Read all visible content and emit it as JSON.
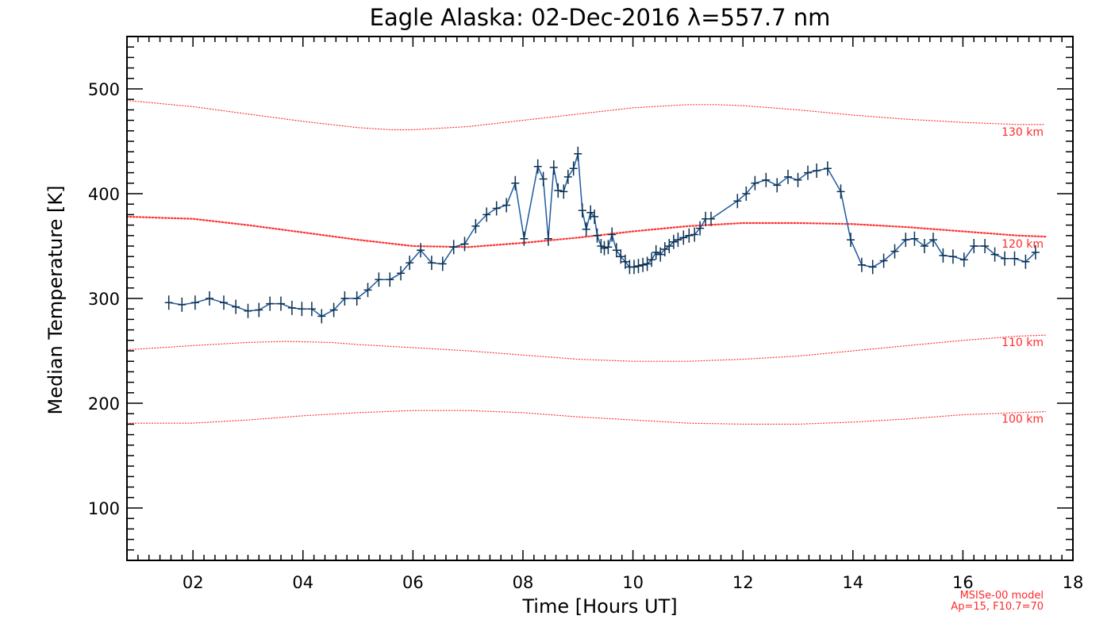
{
  "chart_data": {
    "type": "line",
    "title": "Eagle Alaska: 02-Dec-2016 λ=557.7 nm",
    "xlabel": "Time [Hours UT]",
    "ylabel": "Median Temperature [K]",
    "xlim": [
      0.8,
      18.0
    ],
    "ylim": [
      50,
      550
    ],
    "xticks": [
      2,
      4,
      6,
      8,
      10,
      12,
      14,
      16,
      18
    ],
    "xtick_labels": [
      "02",
      "04",
      "06",
      "08",
      "10",
      "12",
      "14",
      "16",
      "18"
    ],
    "yticks": [
      100,
      200,
      300,
      400,
      500
    ],
    "ytick_labels": [
      "100",
      "200",
      "300",
      "400",
      "500"
    ],
    "grid": false,
    "note_lines": [
      "MSISe-00 model",
      "Ap=15, F10.7=70"
    ],
    "measured": {
      "color": "#0b3050",
      "x": [
        1.56,
        1.8,
        2.04,
        2.3,
        2.56,
        2.78,
        3.0,
        3.2,
        3.4,
        3.6,
        3.8,
        3.98,
        4.16,
        4.34,
        4.56,
        4.76,
        4.98,
        5.18,
        5.38,
        5.58,
        5.78,
        5.94,
        6.14,
        6.34,
        6.54,
        6.74,
        6.94,
        7.14,
        7.34,
        7.52,
        7.7,
        7.86,
        8.02,
        8.27,
        8.37,
        8.46,
        8.56,
        8.64,
        8.74,
        8.82,
        8.92,
        9.0,
        9.08,
        9.15,
        9.23,
        9.3,
        9.35,
        9.42,
        9.48,
        9.55,
        9.62,
        9.7,
        9.78,
        9.86,
        9.94,
        10.02,
        10.1,
        10.18,
        10.26,
        10.34,
        10.42,
        10.5,
        10.58,
        10.66,
        10.74,
        10.82,
        10.92,
        11.02,
        11.12,
        11.22,
        11.32,
        11.42,
        11.9,
        12.06,
        12.22,
        12.42,
        12.62,
        12.82,
        13.0,
        13.18,
        13.34,
        13.54,
        13.78,
        13.96,
        14.16,
        14.36,
        14.56,
        14.76,
        14.96,
        15.12,
        15.3,
        15.46,
        15.64,
        15.82,
        16.02,
        16.2,
        16.4,
        16.58,
        16.76,
        16.94,
        17.14,
        17.32
      ],
      "y": [
        296,
        294,
        296,
        300,
        296,
        292,
        288,
        289,
        295,
        295,
        291,
        290,
        290,
        283,
        289,
        300,
        300,
        308,
        318,
        318,
        324,
        334,
        346,
        334,
        333,
        349,
        352,
        369,
        380,
        386,
        389,
        410,
        357,
        426,
        414,
        357,
        425,
        403,
        402,
        416,
        424,
        438,
        384,
        366,
        382,
        378,
        360,
        350,
        348,
        349,
        361,
        346,
        340,
        335,
        330,
        330,
        331,
        332,
        333,
        337,
        344,
        342,
        347,
        350,
        354,
        356,
        358,
        360,
        361,
        367,
        376,
        376,
        393,
        400,
        410,
        413,
        408,
        416,
        413,
        420,
        422,
        424,
        402,
        356,
        332,
        330,
        336,
        345,
        356,
        357,
        350,
        356,
        341,
        340,
        337,
        350,
        350,
        342,
        338,
        338,
        335,
        344
      ]
    },
    "model_series": [
      {
        "name": "130 km",
        "x": [
          0.8,
          2.0,
          3.0,
          4.0,
          5.0,
          5.6,
          6.0,
          7.0,
          8.0,
          9.0,
          10.0,
          11.0,
          11.5,
          12.0,
          13.0,
          14.0,
          15.0,
          16.0,
          17.0,
          17.5
        ],
        "y": [
          489,
          483,
          476,
          469,
          463,
          461,
          461,
          464,
          470,
          476,
          482,
          485,
          485,
          484,
          480,
          475,
          471,
          468,
          466,
          466
        ]
      },
      {
        "name": "120 km",
        "x": [
          0.8,
          2.0,
          3.0,
          4.0,
          5.0,
          6.0,
          7.0,
          8.0,
          9.0,
          10.0,
          11.0,
          12.0,
          13.0,
          14.0,
          15.0,
          16.0,
          17.0,
          17.5
        ],
        "y": [
          378,
          376,
          370,
          363,
          356,
          350,
          349,
          353,
          358,
          364,
          369,
          372,
          372,
          371,
          368,
          364,
          360,
          359
        ]
      },
      {
        "name": "110 km",
        "x": [
          0.8,
          2.0,
          3.0,
          3.7,
          4.5,
          5.0,
          6.0,
          7.0,
          8.0,
          9.0,
          10.0,
          11.0,
          12.0,
          13.0,
          14.0,
          15.0,
          16.0,
          17.0,
          17.5
        ],
        "y": [
          251,
          255,
          258,
          259,
          258,
          256,
          253,
          250,
          246,
          242,
          240,
          240,
          242,
          245,
          250,
          255,
          260,
          264,
          265
        ]
      },
      {
        "name": "100 km",
        "x": [
          0.8,
          2.0,
          3.0,
          4.0,
          5.0,
          6.0,
          7.0,
          8.0,
          9.0,
          10.0,
          11.0,
          12.0,
          13.0,
          14.0,
          15.0,
          16.0,
          17.0,
          17.5
        ],
        "y": [
          181,
          181,
          184,
          188,
          191,
          193,
          193,
          191,
          187,
          184,
          181,
          180,
          180,
          182,
          185,
          189,
          191,
          192
        ]
      }
    ]
  }
}
